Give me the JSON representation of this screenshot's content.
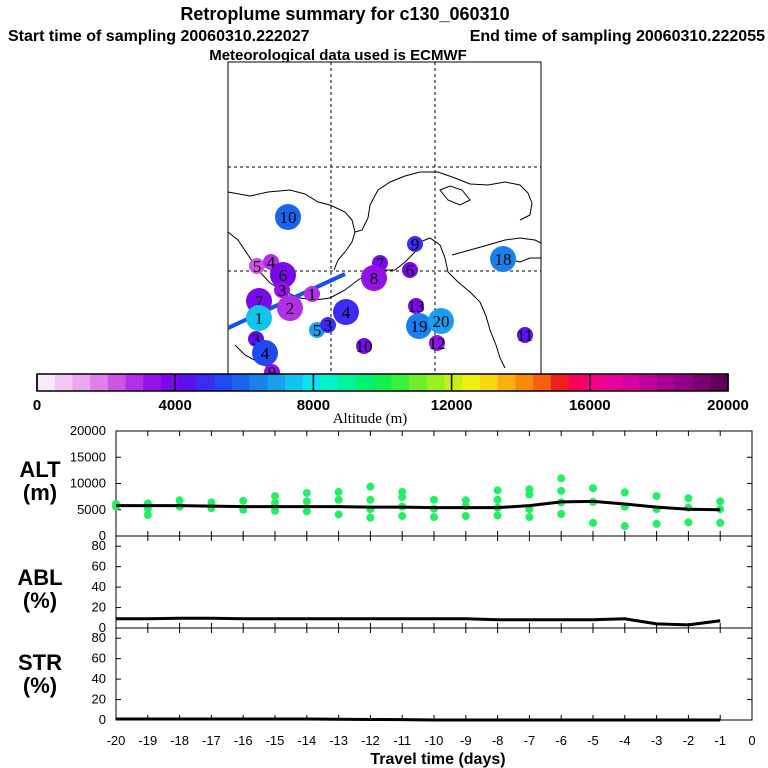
{
  "header": {
    "title": "Retroplume summary for c130_060310",
    "start": "Start time of sampling 20060310.222027",
    "end": "End time of sampling 20060310.222055",
    "met": "Meteorological data used is ECMWF"
  },
  "colorbar": {
    "label": "Altitude (m)",
    "min": 0,
    "max": 20000,
    "ticks": [
      "0",
      "4000",
      "8000",
      "12000",
      "16000",
      "20000"
    ],
    "colors": [
      "#fbe8fb",
      "#f4c8f4",
      "#eca8ee",
      "#e080e8",
      "#cc55e6",
      "#b22fe6",
      "#9412e8",
      "#7a08ec",
      "#5a10f0",
      "#3a2cf4",
      "#2048f4",
      "#1a64f0",
      "#1a80ee",
      "#18a0ee",
      "#10c4f0",
      "#08e4f0",
      "#00f4c8",
      "#00f4a0",
      "#00f078",
      "#10f050",
      "#3cf03c",
      "#6cf02a",
      "#98f01e",
      "#c4f016",
      "#ecf010",
      "#f8d810",
      "#f8b00c",
      "#f88c0a",
      "#f86010",
      "#f02020",
      "#f80060",
      "#f40084",
      "#e80098",
      "#d800a0",
      "#c00098",
      "#a80090",
      "#900088",
      "#780070",
      "#600058"
    ]
  },
  "map": {
    "labels": [
      {
        "t": "10",
        "c": "#1a64f0",
        "big": true
      },
      {
        "t": "9",
        "c": "#3a2cf4",
        "big": false
      },
      {
        "t": "18",
        "c": "#1a80ee",
        "big": true
      },
      {
        "t": "5",
        "c": "#cc55e6",
        "big": false
      },
      {
        "t": "4",
        "c": "#b22fe6",
        "big": false
      },
      {
        "t": "6",
        "c": "#7a08ec",
        "big": true
      },
      {
        "t": "7",
        "c": "#7a08ec",
        "big": false
      },
      {
        "t": "8",
        "c": "#9412e8",
        "big": true
      },
      {
        "t": "6",
        "c": "#7a08ec",
        "big": false
      },
      {
        "t": "3",
        "c": "#9412e8",
        "big": false
      },
      {
        "t": "1",
        "c": "#b22fe6",
        "big": false
      },
      {
        "t": "7",
        "c": "#7a08ec",
        "big": true
      },
      {
        "t": "2",
        "c": "#b22fe6",
        "big": true
      },
      {
        "t": "1",
        "c": "#10c4f0",
        "big": true
      },
      {
        "t": "5",
        "c": "#18a0ee",
        "big": false
      },
      {
        "t": "3",
        "c": "#3a2cf4",
        "big": false
      },
      {
        "t": "4",
        "c": "#3a2cf4",
        "big": true
      },
      {
        "t": "13",
        "c": "#7a08ec",
        "big": false
      },
      {
        "t": "19",
        "c": "#1a80ee",
        "big": true
      },
      {
        "t": "20",
        "c": "#18a0ee",
        "big": true
      },
      {
        "t": "12",
        "c": "#9412e8",
        "big": false
      },
      {
        "t": "11",
        "c": "#5a10f0",
        "big": false
      },
      {
        "t": "10",
        "c": "#7a08ec",
        "big": false
      },
      {
        "t": "3",
        "c": "#5a10f0",
        "big": false
      },
      {
        "t": "4",
        "c": "#2048f4",
        "big": true
      },
      {
        "t": "9",
        "c": "#9412e8",
        "big": false
      }
    ]
  },
  "panels": {
    "alt": {
      "l1": "ALT",
      "l2": "(m)"
    },
    "abl": {
      "l1": "ABL",
      "l2": "(%)"
    },
    "str": {
      "l1": "STR",
      "l2": "(%)"
    }
  },
  "xlabel": "Travel time (days)",
  "chart_data": {
    "type": "line",
    "xlabel": "Travel time (days)",
    "x_ticks": [
      "-20",
      "-19",
      "-18",
      "-17",
      "-16",
      "-15",
      "-14",
      "-13",
      "-12",
      "-11",
      "-10",
      "-9",
      "-8",
      "-7",
      "-6",
      "-5",
      "-4",
      "-3",
      "-2",
      "-1",
      "0"
    ],
    "xlim": [
      -20,
      0
    ],
    "alt": {
      "ylabel": "ALT (m)",
      "ylim": [
        0,
        20000
      ],
      "y_ticks": [
        "0",
        "5000",
        "10000",
        "15000",
        "20000"
      ],
      "x": [
        -20,
        -19,
        -18,
        -17,
        -16,
        -15,
        -14,
        -13,
        -12,
        -11,
        -10,
        -9,
        -8,
        -7,
        -6,
        -5,
        -4,
        -3,
        -2,
        -1
      ],
      "mean": [
        5800,
        5800,
        5800,
        5700,
        5600,
        5600,
        5600,
        5600,
        5500,
        5500,
        5400,
        5400,
        5400,
        5800,
        6500,
        6600,
        6100,
        5500,
        5100,
        5000
      ],
      "points": [
        [
          -20,
          5600
        ],
        [
          -20,
          6100
        ],
        [
          -19,
          5200
        ],
        [
          -19,
          6200
        ],
        [
          -19,
          4000
        ],
        [
          -18,
          5600
        ],
        [
          -18,
          6800
        ],
        [
          -17,
          5300
        ],
        [
          -17,
          6400
        ],
        [
          -16,
          5000
        ],
        [
          -16,
          6700
        ],
        [
          -15,
          4800
        ],
        [
          -15,
          6300
        ],
        [
          -15,
          7600
        ],
        [
          -14,
          4700
        ],
        [
          -14,
          6600
        ],
        [
          -14,
          8200
        ],
        [
          -13,
          4100
        ],
        [
          -13,
          6900
        ],
        [
          -13,
          8400
        ],
        [
          -12,
          3500
        ],
        [
          -12,
          5100
        ],
        [
          -12,
          6900
        ],
        [
          -12,
          9400
        ],
        [
          -11,
          3800
        ],
        [
          -11,
          5600
        ],
        [
          -11,
          7400
        ],
        [
          -11,
          8400
        ],
        [
          -10,
          3600
        ],
        [
          -10,
          5200
        ],
        [
          -10,
          6900
        ],
        [
          -9,
          3800
        ],
        [
          -9,
          5700
        ],
        [
          -9,
          6800
        ],
        [
          -8,
          3900
        ],
        [
          -8,
          5400
        ],
        [
          -8,
          6900
        ],
        [
          -8,
          8700
        ],
        [
          -7,
          3600
        ],
        [
          -7,
          5100
        ],
        [
          -7,
          7900
        ],
        [
          -7,
          8900
        ],
        [
          -6,
          4200
        ],
        [
          -6,
          6400
        ],
        [
          -6,
          8600
        ],
        [
          -6,
          11000
        ],
        [
          -5,
          2500
        ],
        [
          -5,
          6500
        ],
        [
          -5,
          9100
        ],
        [
          -4,
          1900
        ],
        [
          -4,
          5600
        ],
        [
          -4,
          8300
        ],
        [
          -3,
          2300
        ],
        [
          -3,
          5100
        ],
        [
          -3,
          7600
        ],
        [
          -2,
          2600
        ],
        [
          -2,
          5400
        ],
        [
          -2,
          7200
        ],
        [
          -1,
          2500
        ],
        [
          -1,
          5100
        ],
        [
          -1,
          6600
        ]
      ]
    },
    "abl": {
      "ylabel": "ABL (%)",
      "ylim": [
        0,
        90
      ],
      "y_ticks": [
        "0",
        "20",
        "40",
        "60",
        "80"
      ],
      "x": [
        -20,
        -19,
        -18,
        -17,
        -16,
        -15,
        -14,
        -13,
        -12,
        -11,
        -10,
        -9,
        -8,
        -7,
        -6,
        -5,
        -4,
        -3,
        -2,
        -1
      ],
      "values": [
        9,
        9,
        9.5,
        9.5,
        9,
        9,
        9,
        9,
        9,
        9,
        9,
        9,
        8,
        8,
        8,
        8,
        9,
        4,
        3,
        7
      ]
    },
    "str": {
      "ylabel": "STR (%)",
      "ylim": [
        0,
        90
      ],
      "y_ticks": [
        "0",
        "20",
        "40",
        "60",
        "80"
      ],
      "x": [
        -20,
        -19,
        -18,
        -17,
        -16,
        -15,
        -14,
        -13,
        -12,
        -11,
        -10,
        -9,
        -8,
        -7,
        -6,
        -5,
        -4,
        -3,
        -2,
        -1
      ],
      "values": [
        1,
        1,
        1,
        1,
        1,
        1,
        1,
        0.8,
        0.5,
        0.4,
        0,
        0,
        0,
        0,
        0,
        0,
        0,
        0,
        0,
        0
      ]
    }
  }
}
